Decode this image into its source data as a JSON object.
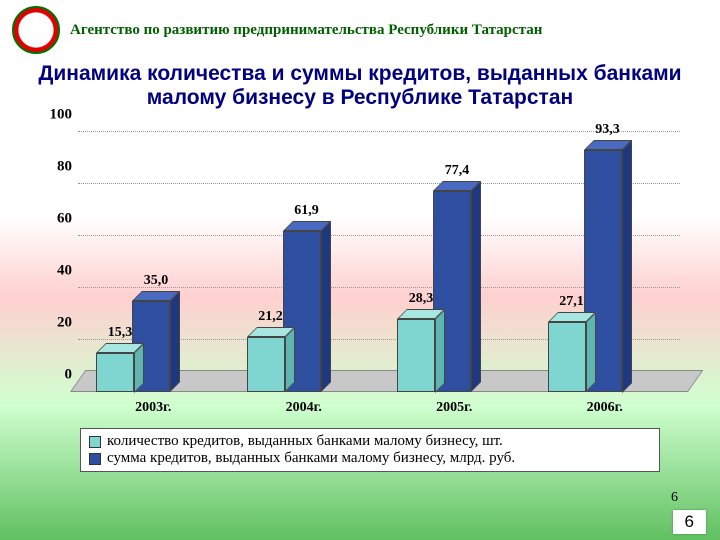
{
  "header": {
    "agency": "Агентство по развитию предпринимательства Республики Татарстан",
    "agency_color": "#006000"
  },
  "title": {
    "text": "Динамика количества и суммы кредитов, выданных банками малому бизнесу в Республике Татарстан",
    "color": "#000080",
    "fontsize": 21
  },
  "chart": {
    "type": "bar-3d-clustered",
    "categories": [
      "2003г.",
      "2004г.",
      "2005г.",
      "2006г."
    ],
    "series": [
      {
        "name": "количество кредитов, выданных банками малому бизнесу, шт.",
        "values": [
          15.3,
          21.2,
          28.3,
          27.1
        ],
        "color_front": "#7fd5d0",
        "color_top": "#a8e6e2",
        "color_side": "#5fb5b0"
      },
      {
        "name": "сумма кредитов, выданных банками малому бизнесу, млрд. руб.",
        "values": [
          35.0,
          61.9,
          77.4,
          93.3
        ],
        "color_front": "#2e4ea0",
        "color_top": "#4a6ac0",
        "color_side": "#1e3880"
      }
    ],
    "value_labels": [
      [
        "15,3",
        "21,2",
        "28,3",
        "27,1"
      ],
      [
        "35,0",
        "61,9",
        "77,4",
        "93,3"
      ]
    ],
    "ylim": [
      0,
      100
    ],
    "yticks": [
      0,
      20,
      40,
      60,
      80,
      100
    ],
    "ytick_labels": [
      "0",
      "20",
      "40",
      "60",
      "80",
      "100"
    ],
    "label_fontsize": 14,
    "floor_color": "#c8c8c8",
    "bg_color": "#ffffff"
  },
  "legend": {
    "items": [
      {
        "swatch": "#7fd5d0",
        "text": "количество кредитов, выданных банками малому бизнесу, шт."
      },
      {
        "swatch": "#2e4ea0",
        "text": "сумма кредитов, выданных банками малому бизнесу, млрд. руб."
      }
    ]
  },
  "pagenum": "6"
}
